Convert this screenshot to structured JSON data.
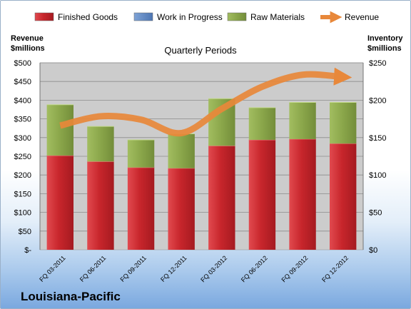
{
  "company": "Louisiana-Pacific",
  "colors": {
    "finished_goods": "#c0282d",
    "work_in_progress": "#5b86c5",
    "raw_materials": "#8aa64a",
    "revenue": "#e8883a",
    "plot_bg": "#cccccc"
  },
  "chart_data": {
    "type": "bar",
    "subtype": "stacked-with-line",
    "title": "Quarterly Periods",
    "left_axis_label": [
      "Revenue",
      "$millions"
    ],
    "right_axis_label": [
      "Inventory",
      "$millions"
    ],
    "left_ticks": [
      "$-",
      "$50",
      "$100",
      "$150",
      "$200",
      "$250",
      "$300",
      "$350",
      "$400",
      "$450",
      "$500"
    ],
    "right_ticks": [
      "$0",
      "$50",
      "$100",
      "$150",
      "$200",
      "$250"
    ],
    "left_ylim": [
      0,
      500
    ],
    "right_ylim": [
      0,
      250
    ],
    "grid": true,
    "legend_position": "top",
    "legend": [
      "Finished Goods",
      "Work in Progress",
      "Raw Materials",
      "Revenue"
    ],
    "categories": [
      "FQ 03-2011",
      "FQ 06-2011",
      "FQ 09-2011",
      "FQ 12-2011",
      "FQ 03-2012",
      "FQ 06-2012",
      "FQ 09-2012",
      "FQ 12-2012"
    ],
    "series": [
      {
        "name": "Finished Goods",
        "axis": "right",
        "values": [
          126,
          118,
          110,
          109,
          139,
          147,
          148,
          142
        ]
      },
      {
        "name": "Work in Progress",
        "axis": "right",
        "values": [
          0,
          0,
          0,
          0,
          0,
          0,
          0,
          0
        ]
      },
      {
        "name": "Raw Materials",
        "axis": "right",
        "values": [
          68,
          47,
          37,
          46,
          63,
          43,
          49,
          55
        ]
      },
      {
        "name": "Revenue",
        "axis": "left",
        "type": "line",
        "values": [
          332,
          357,
          348,
          312,
          377,
          436,
          468,
          462
        ]
      }
    ]
  }
}
